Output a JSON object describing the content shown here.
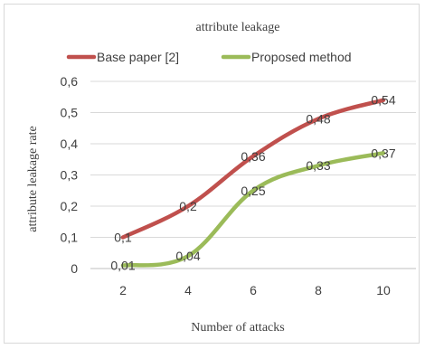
{
  "chart_data": {
    "type": "line",
    "title": "attribute leakage",
    "xlabel": "Number of attacks",
    "ylabel": "attribute leakage rate",
    "x": [
      2,
      4,
      6,
      8,
      10
    ],
    "x_tick_labels": [
      "2",
      "4",
      "6",
      "8",
      "10"
    ],
    "ylim": [
      0,
      0.6
    ],
    "y_tick_labels": [
      "0",
      "0,1",
      "0,2",
      "0,3",
      "0,4",
      "0,5",
      "0,6"
    ],
    "grid": true,
    "legend": "top",
    "series": [
      {
        "name": "Base paper [2]",
        "color": "#c0504d",
        "values": [
          0.1,
          0.2,
          0.36,
          0.48,
          0.54
        ],
        "labels": [
          "0,1",
          "0,2",
          "0,36",
          "0,48",
          "0,54"
        ]
      },
      {
        "name": "Proposed method",
        "color": "#9bbb59",
        "values": [
          0.01,
          0.04,
          0.25,
          0.33,
          0.37
        ],
        "labels": [
          "0,01",
          "0,04",
          "0,25",
          "0,33",
          "0,37"
        ]
      }
    ]
  }
}
